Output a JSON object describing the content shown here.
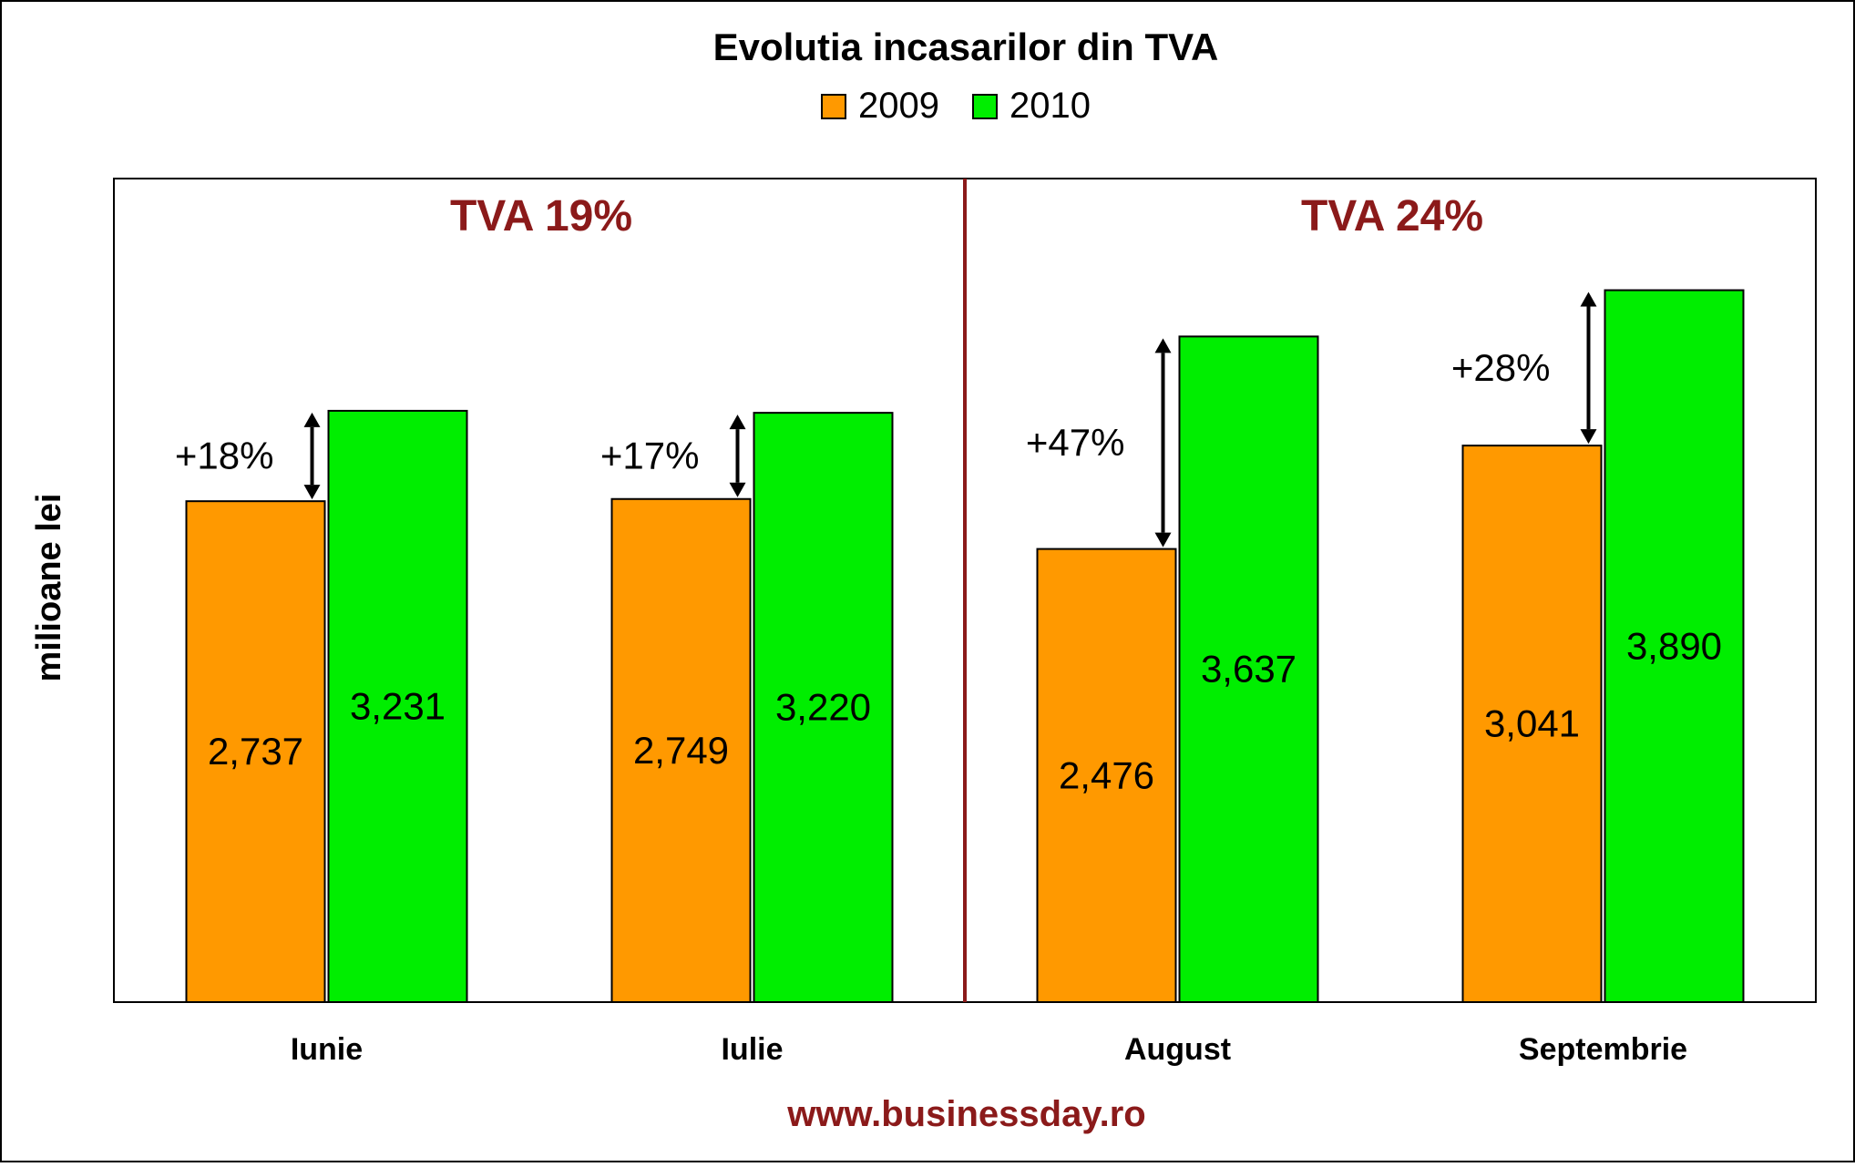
{
  "chart_data": {
    "type": "bar",
    "title": "Evolutia incasarilor din TVA",
    "ylabel": "milioane lei",
    "xlabel": "",
    "categories": [
      "Iunie",
      "Iulie",
      "August",
      "Septembrie"
    ],
    "series": [
      {
        "name": "2009",
        "color": "#ff9900",
        "values": [
          2737,
          2749,
          2476,
          3041
        ],
        "labels": [
          "2,737",
          "2,749",
          "2,476",
          "3,041"
        ]
      },
      {
        "name": "2010",
        "color": "#00ee00",
        "values": [
          3231,
          3220,
          3637,
          3890
        ],
        "labels": [
          "3,231",
          "3,220",
          "3,637",
          "3,890"
        ]
      }
    ],
    "growth_labels": [
      "+18%",
      "+17%",
      "+47%",
      "+28%"
    ],
    "ylim": [
      0,
      4500
    ],
    "legend": "top-center",
    "grid": false,
    "regions": [
      {
        "label": "TVA 19%",
        "categories": [
          "Iunie",
          "Iulie"
        ]
      },
      {
        "label": "TVA 24%",
        "categories": [
          "August",
          "Septembrie"
        ]
      }
    ],
    "region_color": "#8b1a1a",
    "source": "www.businessday.ro"
  }
}
